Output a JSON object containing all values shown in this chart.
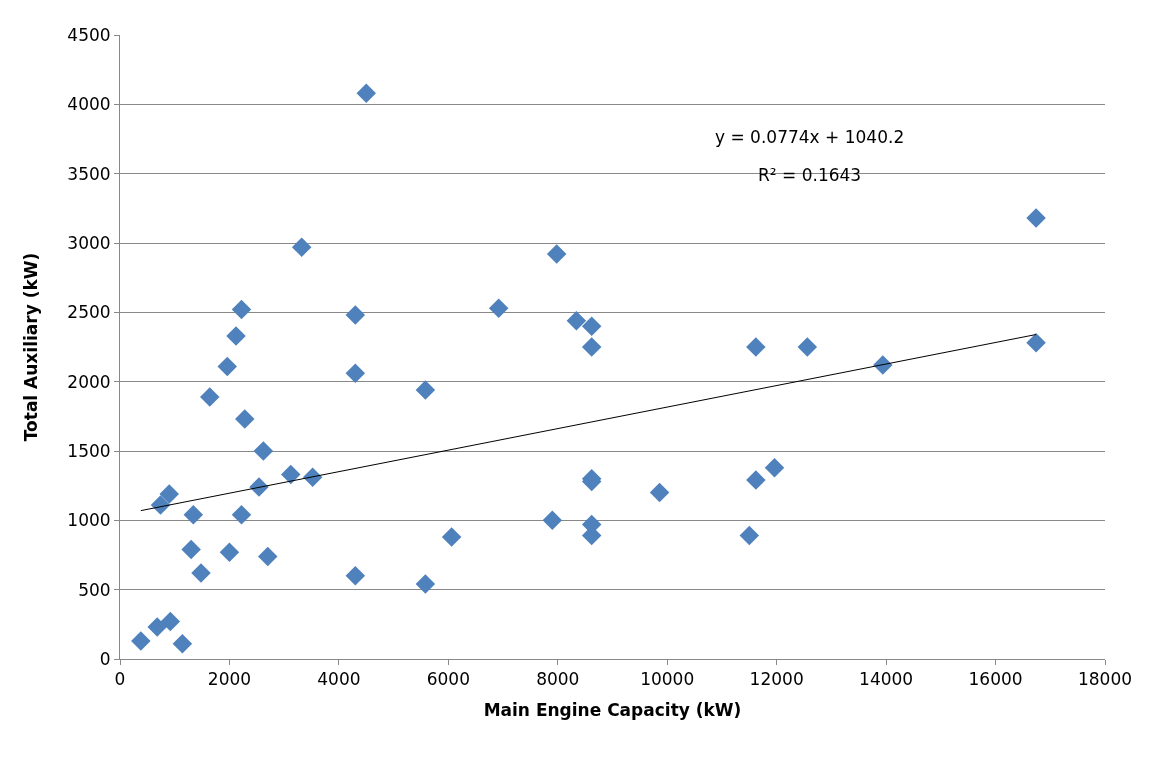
{
  "chart_data": {
    "type": "scatter",
    "xlabel": "Main Engine Capacity (kW)",
    "ylabel": "Total Auxiliary (kW)",
    "xlim": [
      0,
      18000
    ],
    "xticks": [
      0,
      2000,
      4000,
      6000,
      8000,
      10000,
      12000,
      14000,
      16000,
      18000
    ],
    "ylim": [
      0,
      4500
    ],
    "yticks": [
      0,
      500,
      1000,
      1500,
      2000,
      2500,
      3000,
      3500,
      4000,
      4500
    ],
    "grid": "y",
    "marker": "diamond",
    "annotations": [
      "y = 0.0774x + 1040.2",
      "R² = 0.1643"
    ],
    "series": [
      {
        "color": "#4f81bd",
        "x": [
          380,
          680,
          920,
          1140,
          740,
          900,
          1340,
          1300,
          1480,
          1640,
          1960,
          2120,
          2220,
          2280,
          2220,
          2000,
          2620,
          2540,
          2700,
          3120,
          3520,
          3320,
          4300,
          4300,
          4300,
          4500,
          5580,
          5580,
          6060,
          6920,
          7980,
          7900,
          8340,
          8620,
          8620,
          8620,
          8620,
          8620,
          8620,
          9860,
          11500,
          11620,
          11620,
          11960,
          12560,
          13940,
          16740,
          16740
        ],
        "values": [
          130,
          230,
          270,
          110,
          1110,
          1190,
          1040,
          790,
          620,
          1890,
          2110,
          2330,
          2520,
          1730,
          1040,
          770,
          1500,
          1240,
          740,
          1330,
          1310,
          2970,
          2480,
          2060,
          600,
          4080,
          1940,
          540,
          880,
          2530,
          2920,
          1000,
          2440,
          2400,
          2250,
          1300,
          1280,
          970,
          890,
          1200,
          890,
          1290,
          2250,
          1380,
          2250,
          2120,
          3180,
          2280
        ]
      },
      {
        "type": "line",
        "color": "#000000",
        "line_style": "solid",
        "marker": "none",
        "x": [
          380,
          16740
        ],
        "values": [
          1070,
          2340
        ]
      }
    ]
  }
}
